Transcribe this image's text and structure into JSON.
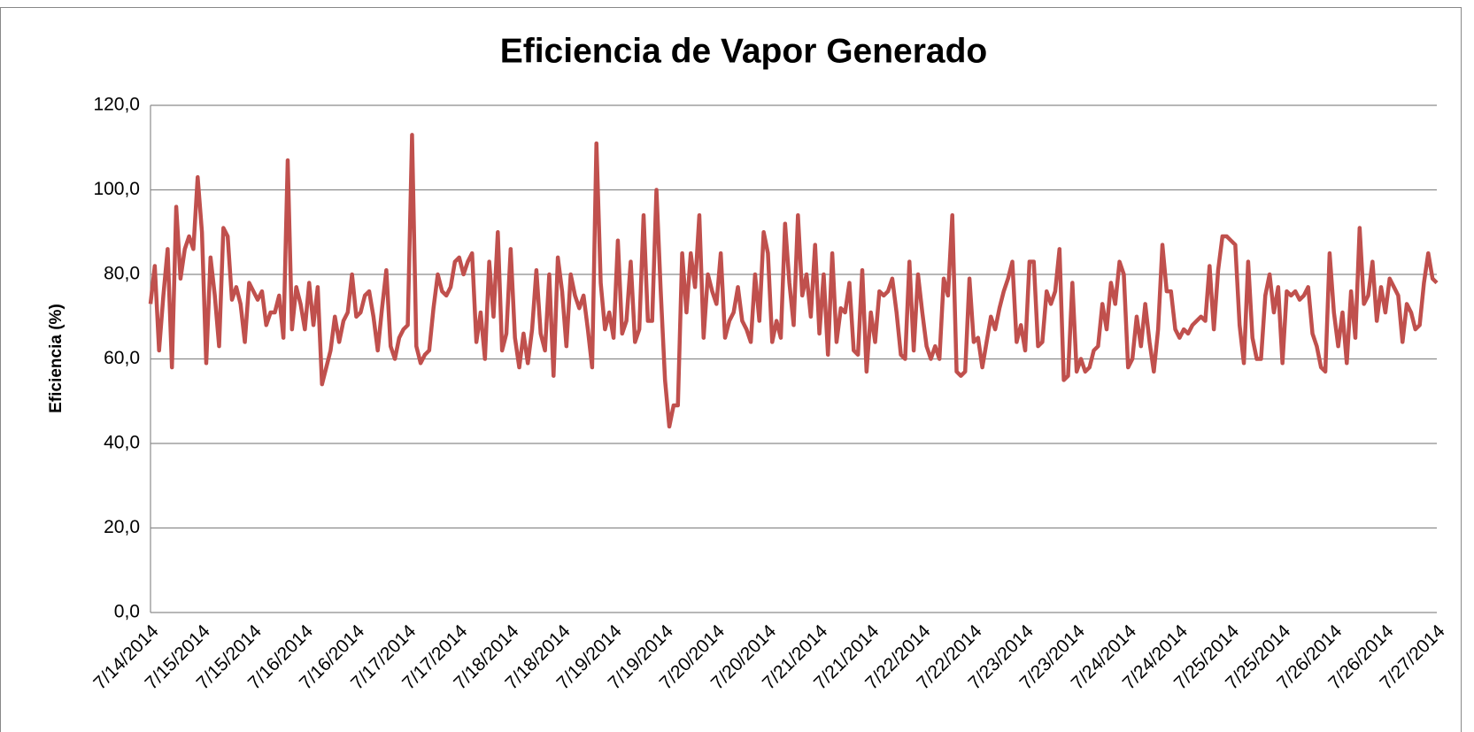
{
  "chart_data": {
    "type": "line",
    "title": "Eficiencia de Vapor Generado",
    "y_label": "Eficiencia (%)",
    "categories": [
      "7/14/2014",
      null,
      null,
      null,
      null,
      null,
      null,
      null,
      null,
      null,
      null,
      null,
      "7/15/2014",
      null,
      null,
      null,
      null,
      null,
      null,
      null,
      null,
      null,
      null,
      null,
      "7/15/2014",
      null,
      null,
      null,
      null,
      null,
      null,
      null,
      null,
      null,
      null,
      null,
      "7/16/2014",
      null,
      null,
      null,
      null,
      null,
      null,
      null,
      null,
      null,
      null,
      null,
      "7/16/2014",
      null,
      null,
      null,
      null,
      null,
      null,
      null,
      null,
      null,
      null,
      null,
      "7/17/2014",
      null,
      null,
      null,
      null,
      null,
      null,
      null,
      null,
      null,
      null,
      null,
      "7/17/2014",
      null,
      null,
      null,
      null,
      null,
      null,
      null,
      null,
      null,
      null,
      null,
      "7/18/2014",
      null,
      null,
      null,
      null,
      null,
      null,
      null,
      null,
      null,
      null,
      null,
      "7/18/2014",
      null,
      null,
      null,
      null,
      null,
      null,
      null,
      null,
      null,
      null,
      null,
      "7/19/2014",
      null,
      null,
      null,
      null,
      null,
      null,
      null,
      null,
      null,
      null,
      null,
      "7/19/2014",
      null,
      null,
      null,
      null,
      null,
      null,
      null,
      null,
      null,
      null,
      null,
      "7/20/2014",
      null,
      null,
      null,
      null,
      null,
      null,
      null,
      null,
      null,
      null,
      null,
      "7/20/2014",
      null,
      null,
      null,
      null,
      null,
      null,
      null,
      null,
      null,
      null,
      null,
      "7/21/2014",
      null,
      null,
      null,
      null,
      null,
      null,
      null,
      null,
      null,
      null,
      null,
      "7/21/2014",
      null,
      null,
      null,
      null,
      null,
      null,
      null,
      null,
      null,
      null,
      null,
      "7/22/2014",
      null,
      null,
      null,
      null,
      null,
      null,
      null,
      null,
      null,
      null,
      null,
      "7/22/2014",
      null,
      null,
      null,
      null,
      null,
      null,
      null,
      null,
      null,
      null,
      null,
      "7/23/2014",
      null,
      null,
      null,
      null,
      null,
      null,
      null,
      null,
      null,
      null,
      null,
      "7/23/2014",
      null,
      null,
      null,
      null,
      null,
      null,
      null,
      null,
      null,
      null,
      null,
      "7/24/2014",
      null,
      null,
      null,
      null,
      null,
      null,
      null,
      null,
      null,
      null,
      null,
      "7/24/2014",
      null,
      null,
      null,
      null,
      null,
      null,
      null,
      null,
      null,
      null,
      null,
      "7/25/2014",
      null,
      null,
      null,
      null,
      null,
      null,
      null,
      null,
      null,
      null,
      null,
      "7/25/2014",
      null,
      null,
      null,
      null,
      null,
      null,
      null,
      null,
      null,
      null,
      null,
      "7/26/2014",
      null,
      null,
      null,
      null,
      null,
      null,
      null,
      null,
      null,
      null,
      null,
      "7/26/2014",
      null,
      null,
      null,
      null,
      null,
      null,
      null,
      null,
      null,
      null,
      null,
      "7/27/2014"
    ],
    "values": [
      73,
      82,
      62,
      75,
      86,
      58,
      96,
      79,
      86,
      89,
      86,
      103,
      90,
      59,
      84,
      75,
      63,
      91,
      89,
      74,
      77,
      73,
      64,
      78,
      76,
      74,
      76,
      68,
      71,
      71,
      75,
      65,
      107,
      67,
      77,
      73,
      67,
      78,
      68,
      77,
      54,
      58,
      62,
      70,
      64,
      69,
      71,
      80,
      70,
      71,
      75,
      76,
      70,
      62,
      72,
      81,
      63,
      60,
      65,
      67,
      68,
      113,
      63,
      59,
      61,
      62,
      72,
      80,
      76,
      75,
      77,
      83,
      84,
      80,
      83,
      85,
      64,
      71,
      60,
      83,
      70,
      90,
      62,
      66,
      86,
      65,
      58,
      66,
      59,
      67,
      81,
      66,
      62,
      80,
      56,
      84,
      76,
      63,
      80,
      75,
      72,
      75,
      67,
      58,
      111,
      78,
      67,
      71,
      65,
      88,
      66,
      69,
      83,
      64,
      67,
      94,
      69,
      69,
      100,
      76,
      55,
      44,
      49,
      49,
      85,
      71,
      85,
      77,
      94,
      65,
      80,
      76,
      73,
      85,
      65,
      69,
      71,
      77,
      69,
      67,
      64,
      80,
      69,
      90,
      85,
      64,
      69,
      65,
      92,
      78,
      68,
      94,
      75,
      80,
      70,
      87,
      66,
      80,
      61,
      85,
      64,
      72,
      71,
      78,
      62,
      61,
      81,
      57,
      71,
      64,
      76,
      75,
      76,
      79,
      71,
      61,
      60,
      83,
      62,
      80,
      71,
      63,
      60,
      63,
      60,
      79,
      75,
      94,
      57,
      56,
      57,
      79,
      64,
      65,
      58,
      64,
      70,
      67,
      72,
      76,
      79,
      83,
      64,
      68,
      62,
      83,
      83,
      63,
      64,
      76,
      73,
      76,
      86,
      55,
      56,
      78,
      57,
      60,
      57,
      58,
      62,
      63,
      73,
      67,
      78,
      73,
      83,
      80,
      58,
      60,
      70,
      63,
      73,
      64,
      57,
      67,
      87,
      76,
      76,
      67,
      65,
      67,
      66,
      68,
      69,
      70,
      69,
      82,
      67,
      81,
      89,
      89,
      88,
      87,
      68,
      59,
      83,
      65,
      60,
      60,
      75,
      80,
      71,
      77,
      59,
      76,
      75,
      76,
      74,
      75,
      77,
      66,
      63,
      58,
      57,
      85,
      71,
      63,
      71,
      59,
      76,
      65,
      91,
      73,
      75,
      83,
      69,
      77,
      71,
      79,
      77,
      75,
      64,
      73,
      71,
      67,
      68,
      78,
      85,
      79,
      78
    ],
    "color": "#c0504d",
    "ylim": [
      0,
      120
    ],
    "yticks": [
      {
        "value": 0,
        "label": "0,0"
      },
      {
        "value": 20,
        "label": "20,0"
      },
      {
        "value": 40,
        "label": "40,0"
      },
      {
        "value": 60,
        "label": "60,0"
      },
      {
        "value": 80,
        "label": "80,0"
      },
      {
        "value": 100,
        "label": "100,0"
      },
      {
        "value": 120,
        "label": "120,0"
      }
    ],
    "grid": true
  }
}
